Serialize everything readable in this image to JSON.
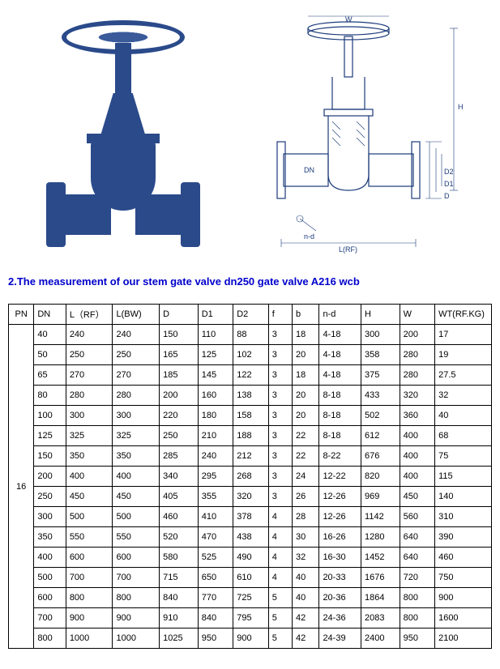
{
  "heading": "2.The measurement of our stem gate valve dn250 gate valve A216 wcb",
  "diagram_labels": {
    "h": "H",
    "w": "W",
    "dn": "DN",
    "d2": "D2",
    "d1": "D1",
    "d": "D",
    "lrf": "L(RF)",
    "nd": "n-d"
  },
  "table": {
    "columns": [
      "PN",
      "DN",
      "L（RF）",
      "L(BW)",
      "D",
      "D1",
      "D2",
      "f",
      "b",
      "n-d",
      "H",
      "W",
      "WT(RF.KG)"
    ],
    "pn_value": "16",
    "rows": [
      [
        "40",
        "240",
        "240",
        "150",
        "110",
        "88",
        "3",
        "18",
        "4-18",
        "300",
        "200",
        "17"
      ],
      [
        "50",
        "250",
        "250",
        "165",
        "125",
        "102",
        "3",
        "20",
        "4-18",
        "358",
        "280",
        "19"
      ],
      [
        "65",
        "270",
        "270",
        "185",
        "145",
        "122",
        "3",
        "18",
        "4-18",
        "375",
        "280",
        "27.5"
      ],
      [
        "80",
        "280",
        "280",
        "200",
        "160",
        "138",
        "3",
        "20",
        "8-18",
        "433",
        "320",
        "32"
      ],
      [
        "100",
        "300",
        "300",
        "220",
        "180",
        "158",
        "3",
        "20",
        "8-18",
        "502",
        "360",
        "40"
      ],
      [
        "125",
        "325",
        "325",
        "250",
        "210",
        "188",
        "3",
        "22",
        "8-18",
        "612",
        "400",
        "68"
      ],
      [
        "150",
        "350",
        "350",
        "285",
        "240",
        "212",
        "3",
        "22",
        "8-22",
        "676",
        "400",
        "75"
      ],
      [
        "200",
        "400",
        "400",
        "340",
        "295",
        "268",
        "3",
        "24",
        "12-22",
        "820",
        "400",
        "115"
      ],
      [
        "250",
        "450",
        "450",
        "405",
        "355",
        "320",
        "3",
        "26",
        "12-26",
        "969",
        "450",
        "140"
      ],
      [
        "300",
        "500",
        "500",
        "460",
        "410",
        "378",
        "4",
        "28",
        "12-26",
        "1142",
        "560",
        "310"
      ],
      [
        "350",
        "550",
        "550",
        "520",
        "470",
        "438",
        "4",
        "30",
        "16-26",
        "1280",
        "640",
        "390"
      ],
      [
        "400",
        "600",
        "600",
        "580",
        "525",
        "490",
        "4",
        "32",
        "16-30",
        "1452",
        "640",
        "460"
      ],
      [
        "500",
        "700",
        "700",
        "715",
        "650",
        "610",
        "4",
        "40",
        "20-33",
        "1676",
        "720",
        "750"
      ],
      [
        "600",
        "800",
        "800",
        "840",
        "770",
        "725",
        "5",
        "40",
        "20-36",
        "1864",
        "800",
        "900"
      ],
      [
        "700",
        "900",
        "900",
        "910",
        "840",
        "795",
        "5",
        "42",
        "24-36",
        "2083",
        "800",
        "1600"
      ],
      [
        "800",
        "1000",
        "1000",
        "1025",
        "950",
        "900",
        "5",
        "42",
        "24-39",
        "2400",
        "950",
        "2100"
      ]
    ]
  },
  "colors": {
    "valve_blue": "#2a4a8a",
    "heading_blue": "#0000cc",
    "border": "#000000",
    "background": "#ffffff"
  }
}
